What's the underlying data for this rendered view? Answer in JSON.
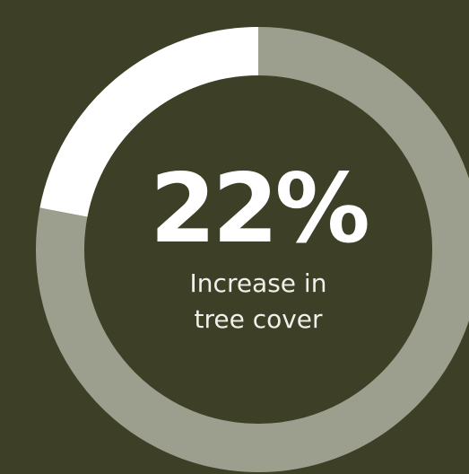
{
  "chart_data": {
    "type": "pie",
    "variant": "donut",
    "value_label": "22%",
    "description_lines": [
      "Increase in",
      "tree cover"
    ],
    "segments": [
      {
        "value": 22,
        "color": "#ffffff"
      },
      {
        "value": 78,
        "color": "#9c9f8d"
      }
    ],
    "direction": "counterclockwise",
    "start": "top"
  },
  "colors": {
    "background": "#3d3f27",
    "highlight": "#ffffff",
    "track": "#9c9f8d"
  }
}
